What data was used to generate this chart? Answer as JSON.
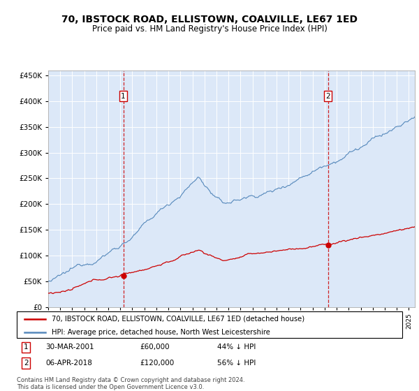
{
  "title": "70, IBSTOCK ROAD, ELLISTOWN, COALVILLE, LE67 1ED",
  "subtitle": "Price paid vs. HM Land Registry's House Price Index (HPI)",
  "legend_line1": "70, IBSTOCK ROAD, ELLISTOWN, COALVILLE, LE67 1ED (detached house)",
  "legend_line2": "HPI: Average price, detached house, North West Leicestershire",
  "transaction1_date": "30-MAR-2001",
  "transaction1_price": "£60,000",
  "transaction1_hpi": "44% ↓ HPI",
  "transaction1_year": 2001.25,
  "transaction1_value": 60000,
  "transaction2_date": "06-APR-2018",
  "transaction2_price": "£120,000",
  "transaction2_hpi": "56% ↓ HPI",
  "transaction2_year": 2018.27,
  "transaction2_value": 120000,
  "footer": "Contains HM Land Registry data © Crown copyright and database right 2024.\nThis data is licensed under the Open Government Licence v3.0.",
  "ylim": [
    0,
    460000
  ],
  "xlim": [
    1995.0,
    2025.5
  ],
  "plot_bg": "#dce8f8",
  "red_color": "#cc0000",
  "blue_color": "#5588bb",
  "blue_fill": "#dce8f8"
}
